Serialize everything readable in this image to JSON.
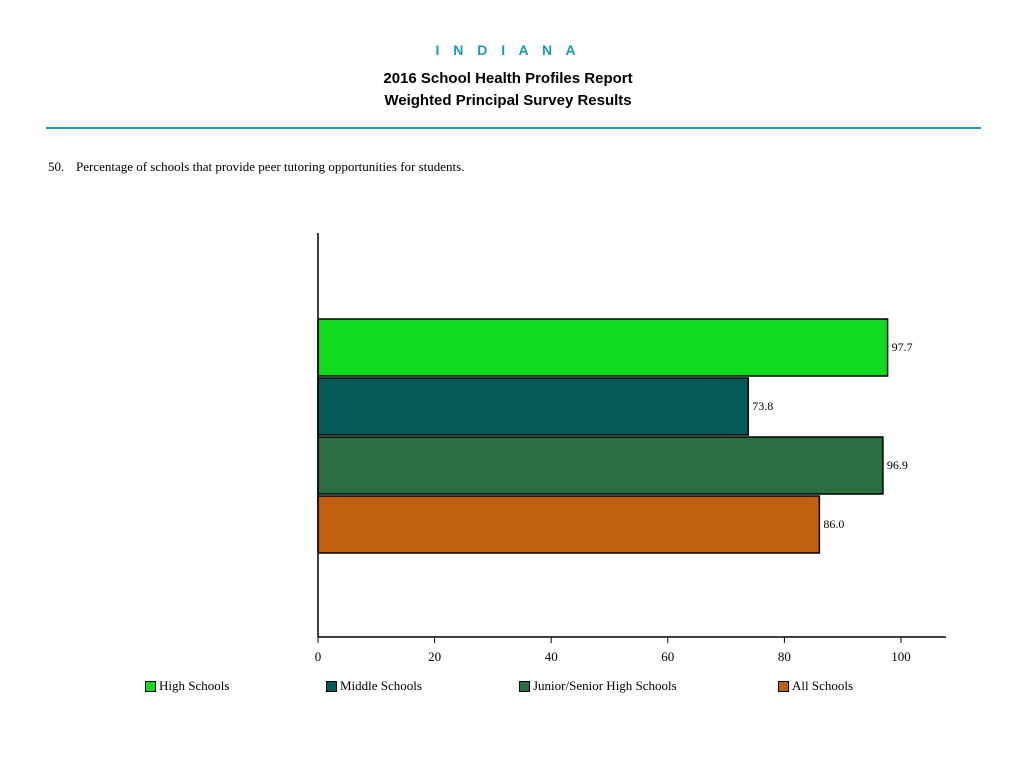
{
  "header": {
    "state": "I N D I A N A",
    "title_line1": "2016 School Health Profiles Report",
    "title_line2": "Weighted Principal Survey Results"
  },
  "question": {
    "number": "50.",
    "text": "Percentage of schools that provide peer tutoring opportunities for students."
  },
  "colors": {
    "accent": "#1a9bb0"
  },
  "chart_data": {
    "type": "bar",
    "orientation": "horizontal",
    "categories": [
      "High Schools",
      "Middle Schools",
      "Junior/Senior High Schools",
      "All Schools"
    ],
    "values": [
      97.7,
      73.8,
      96.9,
      86.0
    ],
    "value_labels": [
      "97.7",
      "73.8",
      "96.9",
      "86.0"
    ],
    "colors": [
      "#0fdc1e",
      "#045a57",
      "#2b6e41",
      "#c0600e"
    ],
    "xlim": [
      0,
      108
    ],
    "xticks": [
      0,
      20,
      40,
      60,
      80,
      100
    ],
    "grid": false,
    "legend_position": "bottom",
    "title": "",
    "xlabel": "",
    "ylabel": ""
  }
}
